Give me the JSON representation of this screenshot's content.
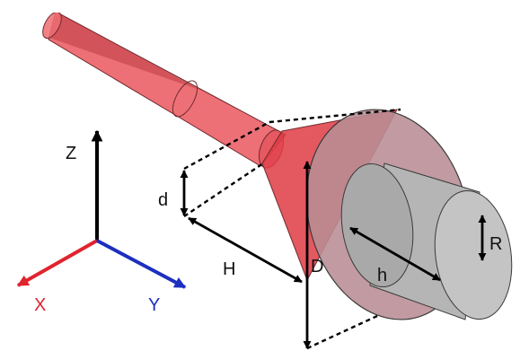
{
  "axes": {
    "x_label": "X",
    "y_label": "Y",
    "z_label": "Z"
  },
  "dimensions": {
    "d": "d",
    "H": "H",
    "D": "D",
    "h": "h",
    "R": "R"
  },
  "colors": {
    "beam_red": "#e8484f",
    "cone_red": "#df3b44",
    "disk_fill": "#b88d94",
    "cylinder_gray": "#b5b5b5",
    "axis_x": "#e0242e",
    "axis_y": "#1c2fbf",
    "axis_z": "#000000"
  }
}
